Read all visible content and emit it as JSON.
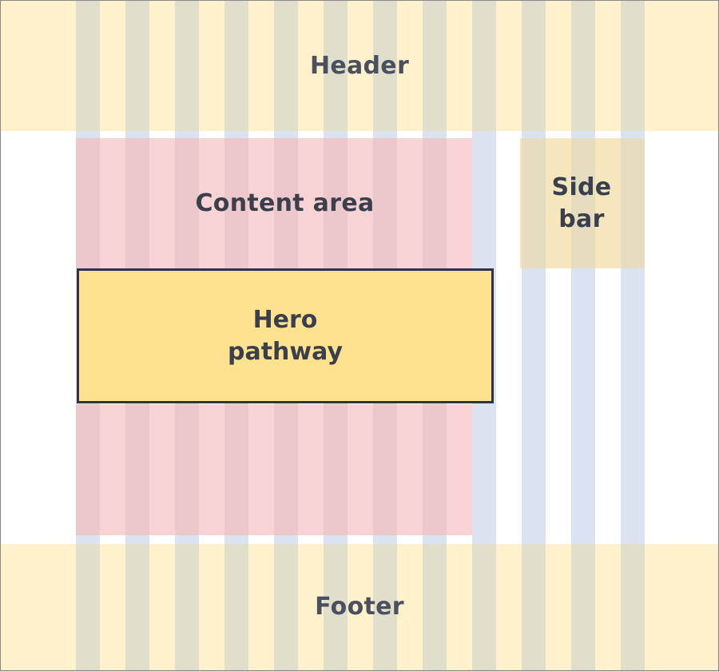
{
  "regions": {
    "header": "Header",
    "content_area": "Content area",
    "sidebar_line1": "Side",
    "sidebar_line2": "bar",
    "hero_line1": "Hero",
    "hero_line2": "pathway",
    "footer": "Footer"
  },
  "colors": {
    "header_footer": "#fff1cc",
    "content": "#f8d3d6",
    "sidebar": "#f5e6be",
    "hero_fill": "#ffe28f",
    "hero_border": "#2e3347",
    "grid_column": "#dbe3f1",
    "grid_column_over_yellow": "#dfdfcc",
    "grid_column_over_pink": "#ecc8cd",
    "grid_column_over_sidebar": "#e6dcc0",
    "text": "#3b3f4c"
  },
  "grid": {
    "column_count": 12
  }
}
